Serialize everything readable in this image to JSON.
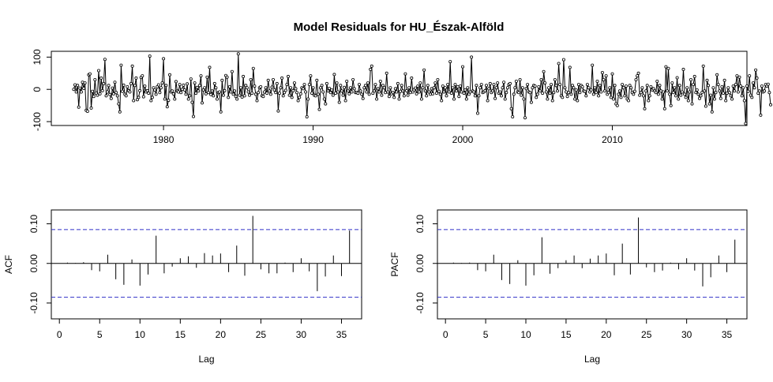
{
  "title": "Model Residuals for HU_Észak-Alföld",
  "chart_data": [
    {
      "type": "line",
      "panel": "residuals",
      "xlim": [
        1972.5,
        2019
      ],
      "ylim": [
        -112,
        118
      ],
      "x_ticks": [
        1980,
        1990,
        2000,
        2010
      ],
      "y_ticks": [
        -100,
        0,
        100
      ],
      "start_year": 1974,
      "frequency": 12,
      "markers": "open-circle",
      "values": [
        0,
        14,
        -8,
        12,
        -55,
        4,
        -8,
        22,
        3,
        20,
        -65,
        -68,
        45,
        48,
        -58,
        -6,
        -22,
        30,
        -12,
        -18,
        58,
        -14,
        35,
        -4,
        18,
        93,
        -20,
        -8,
        12,
        -16,
        -28,
        4,
        -14,
        22,
        -10,
        -20,
        -45,
        -70,
        75,
        -6,
        13,
        -15,
        -20,
        8,
        -4,
        -8,
        18,
        72,
        -35,
        12,
        35,
        -32,
        -25,
        -4,
        37,
        42,
        -23,
        10,
        -8,
        -4,
        -12,
        103,
        -35,
        -25,
        5,
        -2,
        -15,
        8,
        14,
        -10,
        5,
        20,
        95,
        -30,
        12,
        -54,
        -34,
        45,
        -8,
        -5,
        -14,
        -30,
        24,
        -5,
        -8,
        15,
        -10,
        0,
        13,
        -2,
        -15,
        17,
        -30,
        -20,
        32,
        -40,
        -84,
        20,
        -12,
        6,
        -5,
        12,
        42,
        -42,
        -2,
        5,
        -14,
        38,
        -10,
        68,
        -16,
        -5,
        -20,
        18,
        5,
        -30,
        -10,
        -8,
        -70,
        28,
        -18,
        -4,
        43,
        38,
        -25,
        8,
        -8,
        55,
        -15,
        -5,
        -22,
        -30,
        110,
        -18,
        5,
        -24,
        40,
        -20,
        12,
        5,
        -8,
        -18,
        30,
        -12,
        65,
        10,
        -15,
        -35,
        -10,
        5,
        8,
        -20,
        -22,
        -8,
        5,
        -12,
        28,
        -5,
        -15,
        7,
        30,
        -2,
        -10,
        18,
        -67,
        -12,
        5,
        35,
        -20,
        -10,
        -3,
        15,
        40,
        -18,
        5,
        -25,
        -4,
        20,
        2,
        -10,
        -35,
        -25,
        -14,
        5,
        2,
        15,
        -8,
        -85,
        -30,
        15,
        42,
        -12,
        5,
        -18,
        -20,
        28,
        -15,
        -62,
        5,
        12,
        -8,
        -30,
        -45,
        18,
        -5,
        3,
        -10,
        -2,
        -18,
        46,
        -12,
        20,
        -8,
        -40,
        12,
        -5,
        -18,
        6,
        -35,
        25,
        -5,
        -14,
        5,
        -8,
        30,
        2,
        -10,
        -10,
        -12,
        15,
        -5,
        -15,
        -28,
        5,
        12,
        -8,
        20,
        -15,
        62,
        72,
        -12,
        -5,
        15,
        -30,
        2,
        -8,
        25,
        -18,
        12,
        5,
        -10,
        50,
        -8,
        -22,
        5,
        -14,
        -10,
        -25,
        2,
        -8,
        18,
        -30,
        -6,
        12,
        -5,
        -20,
        48,
        -4,
        -18,
        5,
        -10,
        35,
        -8,
        -2,
        4,
        -14,
        10,
        -8,
        20,
        -30,
        5,
        60,
        -5,
        -20,
        12,
        -8,
        -15,
        2,
        -14,
        5,
        20,
        -12,
        30,
        -6,
        -15,
        -35,
        10,
        -8,
        5,
        -20,
        15,
        -8,
        86,
        -12,
        5,
        -30,
        15,
        -5,
        8,
        -22,
        10,
        -8,
        70,
        -12,
        -2,
        -30,
        5,
        -15,
        -8,
        100,
        -5,
        -8,
        -20,
        12,
        -74,
        -20,
        5,
        15,
        -10,
        -8,
        -4,
        12,
        -35,
        2,
        18,
        -10,
        -5,
        15,
        -28,
        5,
        20,
        -12,
        -8,
        -20,
        5,
        22,
        -30,
        -10,
        5,
        15,
        18,
        -60,
        -85,
        -15,
        5,
        25,
        -8,
        -10,
        30,
        -18,
        5,
        -30,
        -88,
        2,
        15,
        -8,
        -10,
        -40,
        5,
        12,
        10,
        -25,
        -15,
        8,
        -5,
        30,
        -12,
        55,
        20,
        -8,
        -30,
        5,
        -12,
        15,
        -35,
        -10,
        30,
        12,
        -5,
        80,
        15,
        -20,
        -25,
        92,
        5,
        -8,
        -22,
        -10,
        68,
        -15,
        12,
        5,
        -30,
        -2,
        -35,
        15,
        -10,
        12,
        8,
        -5,
        -6,
        -20,
        15,
        5,
        -8,
        -2,
        75,
        -15,
        5,
        -10,
        25,
        -20,
        12,
        -8,
        52,
        30,
        -5,
        42,
        -15,
        -10,
        5,
        -25,
        48,
        -30,
        12,
        -45,
        -50,
        -15,
        -5,
        -25,
        15,
        5,
        -20,
        10,
        -30,
        -35,
        12,
        5,
        -10,
        -15,
        -6,
        30,
        42,
        50,
        -18,
        -10,
        5,
        -20,
        -60,
        -5,
        12,
        -35,
        -20,
        8,
        -2,
        2,
        -5,
        -10,
        25,
        -15,
        12,
        -5,
        -30,
        -8,
        -60,
        70,
        -5,
        65,
        -15,
        -50,
        20,
        -10,
        5,
        -20,
        36,
        -30,
        12,
        -18,
        -8,
        62,
        -15,
        -25,
        5,
        -35,
        -8,
        30,
        -45,
        15,
        40,
        -10,
        -2,
        -15,
        -28,
        -20,
        -10,
        72,
        -5,
        -52,
        28,
        12,
        -45,
        -18,
        -70,
        5,
        -30,
        -10,
        45,
        15,
        -5,
        -28,
        8,
        -12,
        28,
        -35,
        -12,
        5,
        -10,
        -20,
        -30,
        10,
        -5,
        15,
        42,
        -8,
        38,
        10,
        -20,
        5,
        -35,
        -106,
        10,
        -6,
        42,
        -18,
        -25,
        20,
        5,
        60,
        35,
        -12,
        -5,
        -80,
        10,
        -8,
        -5,
        15,
        10,
        16,
        -10,
        -48
      ]
    },
    {
      "type": "bar",
      "panel": "acf",
      "xlabel": "Lag",
      "ylabel": "ACF",
      "lags": [
        1,
        2,
        3,
        4,
        5,
        6,
        7,
        8,
        9,
        10,
        11,
        12,
        13,
        14,
        15,
        16,
        17,
        18,
        19,
        20,
        21,
        22,
        23,
        24,
        25,
        26,
        27,
        28,
        29,
        30,
        31,
        32,
        33,
        34,
        35,
        36
      ],
      "values": [
        0.002,
        0.001,
        0.003,
        -0.017,
        -0.02,
        0.022,
        -0.04,
        -0.054,
        0.01,
        -0.056,
        -0.028,
        0.07,
        -0.025,
        -0.008,
        0.013,
        0.018,
        -0.011,
        0.026,
        0.02,
        0.025,
        -0.022,
        0.045,
        -0.031,
        0.12,
        -0.015,
        -0.025,
        -0.025,
        0.002,
        -0.022,
        0.013,
        -0.02,
        -0.07,
        -0.033,
        0.02,
        -0.032,
        0.083
      ],
      "conf_limit": 0.0855,
      "xlim": [
        -1,
        37.5
      ],
      "ylim": [
        -0.14,
        0.135
      ],
      "x_ticks": [
        0,
        5,
        10,
        15,
        20,
        25,
        30,
        35
      ],
      "y_ticks": [
        -0.1,
        0.0,
        0.1
      ],
      "y_tick_labels": [
        "-0.10",
        "0.00",
        "0.10"
      ]
    },
    {
      "type": "bar",
      "panel": "pacf",
      "xlabel": "Lag",
      "ylabel": "PACF",
      "lags": [
        1,
        2,
        3,
        4,
        5,
        6,
        7,
        8,
        9,
        10,
        11,
        12,
        13,
        14,
        15,
        16,
        17,
        18,
        19,
        20,
        21,
        22,
        23,
        24,
        25,
        26,
        27,
        28,
        29,
        30,
        31,
        32,
        33,
        34,
        35,
        36
      ],
      "values": [
        0.002,
        0.001,
        0.002,
        -0.017,
        -0.02,
        0.022,
        -0.042,
        -0.052,
        0.008,
        -0.056,
        -0.03,
        0.066,
        -0.026,
        -0.012,
        0.008,
        0.02,
        -0.012,
        0.012,
        0.02,
        0.025,
        -0.03,
        0.05,
        -0.028,
        0.116,
        -0.01,
        -0.022,
        -0.018,
        0.002,
        -0.015,
        0.013,
        -0.018,
        -0.058,
        -0.035,
        0.02,
        -0.022,
        0.06
      ],
      "conf_limit": 0.0855,
      "xlim": [
        -1,
        37.5
      ],
      "ylim": [
        -0.14,
        0.135
      ],
      "x_ticks": [
        0,
        5,
        10,
        15,
        20,
        25,
        30,
        35
      ],
      "y_ticks": [
        -0.1,
        0.0,
        0.1
      ],
      "y_tick_labels": [
        "-0.10",
        "0.00",
        "0.10"
      ]
    }
  ]
}
